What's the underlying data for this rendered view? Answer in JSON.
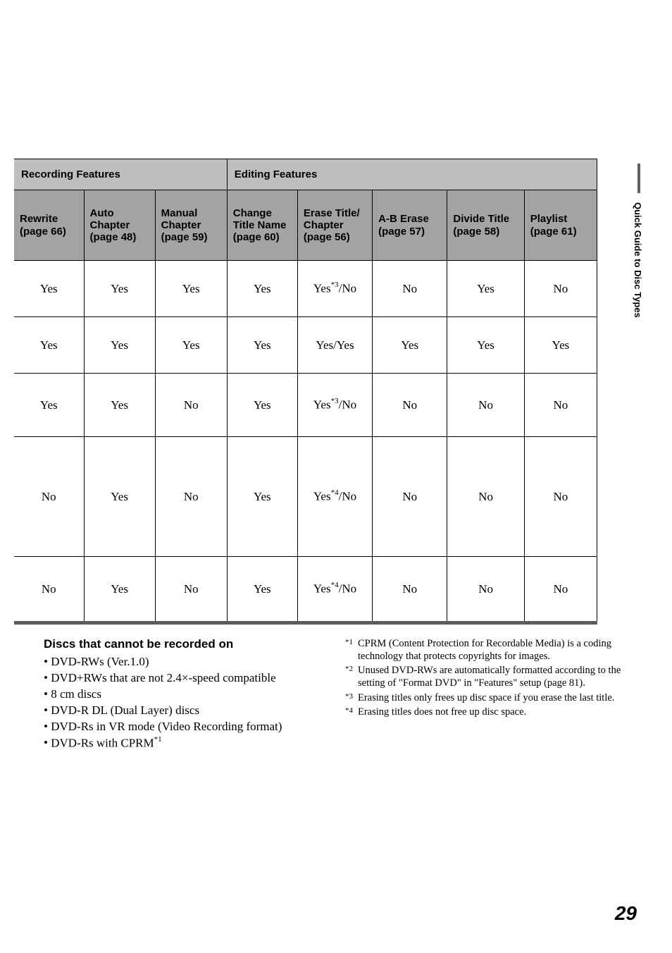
{
  "side_tab": "Quick Guide to Disc Types",
  "page_number": "29",
  "table": {
    "section_headers": {
      "recording": "Recording Features",
      "editing": "Editing Features"
    },
    "columns": {
      "rewrite": {
        "title": "Rewrite",
        "page": "(page 66)"
      },
      "auto": {
        "title": "Auto Chapter",
        "page": "(page 48)"
      },
      "manual": {
        "title": "Manual Chapter",
        "page": "(page 59)"
      },
      "change": {
        "title": "Change Title Name",
        "page": "(page 60)"
      },
      "erase": {
        "title": "Erase Title/ Chapter",
        "page": "(page 56)"
      },
      "ab": {
        "title": "A-B Erase",
        "page": "(page 57)"
      },
      "divide": {
        "title": "Divide Title",
        "page": "(page 58)"
      },
      "playlist": {
        "title": "Playlist",
        "page": "(page 61)"
      }
    },
    "rows": [
      {
        "rewrite": "Yes",
        "auto": "Yes",
        "manual": "Yes",
        "change": "Yes",
        "erase_pre": "Yes",
        "erase_sup": "*3",
        "erase_post": "/No",
        "ab": "No",
        "divide": "Yes",
        "playlist": "No"
      },
      {
        "rewrite": "Yes",
        "auto": "Yes",
        "manual": "Yes",
        "change": "Yes",
        "erase_plain": "Yes/Yes",
        "ab": "Yes",
        "divide": "Yes",
        "playlist": "Yes"
      },
      {
        "rewrite": "Yes",
        "auto": "Yes",
        "manual": "No",
        "change": "Yes",
        "erase_pre": "Yes",
        "erase_sup": "*3",
        "erase_post": "/No",
        "ab": "No",
        "divide": "No",
        "playlist": "No"
      },
      {
        "rewrite": "No",
        "auto": "Yes",
        "manual": "No",
        "change": "Yes",
        "erase_pre": "Yes",
        "erase_sup": "*4",
        "erase_post": "/No",
        "ab": "No",
        "divide": "No",
        "playlist": "No"
      },
      {
        "rewrite": "No",
        "auto": "Yes",
        "manual": "No",
        "change": "Yes",
        "erase_pre": "Yes",
        "erase_sup": "*4",
        "erase_post": "/No",
        "ab": "No",
        "divide": "No",
        "playlist": "No"
      }
    ]
  },
  "lower_left": {
    "heading": "Discs that cannot be recorded on",
    "items": [
      "DVD-RWs (Ver.1.0)",
      "DVD+RWs that are not 2.4×-speed compatible",
      "8 cm discs",
      "DVD-R DL (Dual Layer) discs",
      "DVD-Rs in VR mode (Video Recording format)"
    ],
    "last_item_pre": "DVD-Rs with CPRM",
    "last_item_sup": "*1"
  },
  "footnotes": [
    {
      "marker": "*1",
      "text": "CPRM (Content Protection for Recordable Media) is a coding technology that protects copyrights for images."
    },
    {
      "marker": "*2",
      "text": "Unused DVD-RWs are automatically formatted according to the setting of \"Format DVD\" in \"Features\" setup (page 81)."
    },
    {
      "marker": "*3",
      "text": "Erasing titles only frees up disc space if you erase the last title."
    },
    {
      "marker": "*4",
      "text": "Erasing titles does not free up disc space."
    }
  ]
}
